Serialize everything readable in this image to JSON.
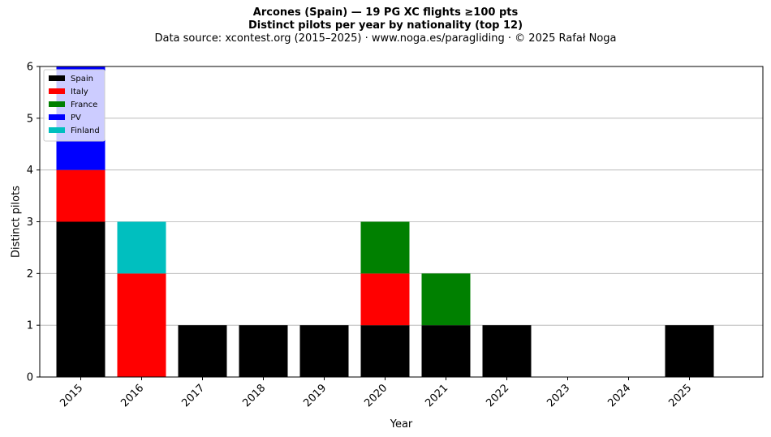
{
  "header": {
    "title": "Arcones (Spain)  —  19 PG XC flights ≥100 pts",
    "subtitle": "Distinct pilots per year by nationality (top 12)",
    "source": "Data source: xcontest.org (2015–2025)  ·  www.noga.es/paragliding  ·  © 2025 Rafał Noga"
  },
  "chart_data": {
    "type": "bar",
    "stacked": true,
    "categories": [
      "2015",
      "2016",
      "2017",
      "2018",
      "2019",
      "2020",
      "2021",
      "2022",
      "2023",
      "2024",
      "2025"
    ],
    "series": [
      {
        "name": "Spain",
        "color": "#000000",
        "values": [
          3,
          0,
          1,
          1,
          1,
          1,
          1,
          1,
          0,
          0,
          1
        ]
      },
      {
        "name": "Italy",
        "color": "#ff0000",
        "values": [
          1,
          2,
          0,
          0,
          0,
          1,
          0,
          0,
          0,
          0,
          0
        ]
      },
      {
        "name": "France",
        "color": "#008000",
        "values": [
          0,
          0,
          0,
          0,
          0,
          1,
          1,
          0,
          0,
          0,
          0
        ]
      },
      {
        "name": "PV",
        "color": "#0000ff",
        "values": [
          2,
          0,
          0,
          0,
          0,
          0,
          0,
          0,
          0,
          0,
          0
        ]
      },
      {
        "name": "Finland",
        "color": "#00bfbf",
        "values": [
          0,
          1,
          0,
          0,
          0,
          0,
          0,
          0,
          0,
          0,
          0
        ]
      }
    ],
    "xlabel": "Year",
    "ylabel": "Distinct pilots",
    "ylim": [
      0,
      6
    ],
    "yticks": [
      0,
      1,
      2,
      3,
      4,
      5,
      6
    ],
    "grid": "horizontal",
    "legend_position": "top-left"
  }
}
